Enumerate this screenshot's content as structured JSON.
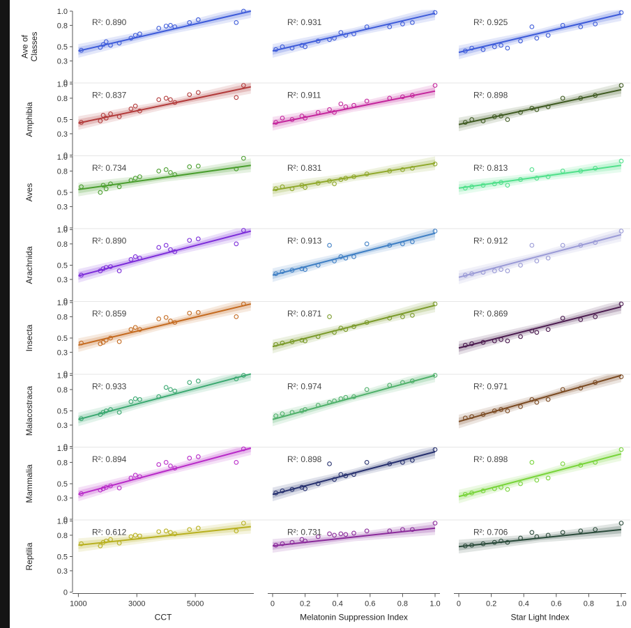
{
  "figure": {
    "columns": [
      "CCT",
      "Melatonin Suppression Index",
      "Star Light Index"
    ],
    "rows": [
      "Ave of Classes",
      "Amphibia",
      "Aves",
      "Arachnida",
      "Insecta",
      "Malacostraca",
      "Mammalia",
      "Reptilia"
    ]
  },
  "chart_data": {
    "type": "scatter",
    "layout": "small-multiples grid (8 rows x 3 columns) with linear fit lines and confidence bands",
    "y_tick_labels": [
      "0",
      "0.3",
      "0.5",
      "0.8",
      "1.0"
    ],
    "ylim": [
      0,
      1
    ],
    "columns": [
      {
        "xlabel": "CCT",
        "xlim": [
          800,
          7000
        ],
        "xticks": [
          1000,
          3000,
          5000
        ],
        "xtick_labels": [
          "1000",
          "3000",
          "5000"
        ]
      },
      {
        "xlabel": "Melatonin Suppression Index",
        "xlim": [
          -0.03,
          1.03
        ],
        "xticks": [
          0,
          0.2,
          0.4,
          0.6,
          0.8,
          1.0
        ],
        "xtick_labels": [
          "0",
          "0.2",
          "0.4",
          "0.6",
          "0.8",
          "1.0"
        ]
      },
      {
        "xlabel": "Star Light Index",
        "xlim": [
          -0.03,
          1.03
        ],
        "xticks": [
          0,
          0.2,
          0.4,
          0.6,
          0.8,
          1.0
        ],
        "xtick_labels": [
          "0",
          "0.2",
          "0.4",
          "0.6",
          "0.8",
          "1.0"
        ]
      }
    ],
    "panel_series": [
      {
        "name": "Ave of Classes",
        "color": "#3d5bd9",
        "panels": [
          {
            "r2": "R²: 0.890",
            "fit": {
              "y0": 0.44,
              "y1": 1.0
            }
          },
          {
            "r2": "R²: 0.931",
            "fit": {
              "y0": 0.44,
              "y1": 0.97
            }
          },
          {
            "r2": "R²: 0.925",
            "fit": {
              "y0": 0.42,
              "y1": 0.96
            }
          }
        ]
      },
      {
        "name": "Amphibia",
        "color": "#b23a3a",
        "colors": [
          "#b23a3a",
          "#c4259c",
          "#3f5a22"
        ],
        "panels": [
          {
            "r2": "R²: 0.837",
            "fit": {
              "y0": 0.45,
              "y1": 0.96
            }
          },
          {
            "r2": "R²: 0.911",
            "fit": {
              "y0": 0.44,
              "y1": 0.9
            }
          },
          {
            "r2": "R²: 0.898",
            "fit": {
              "y0": 0.43,
              "y1": 0.92
            }
          }
        ]
      },
      {
        "name": "Aves",
        "color": "#4a9e2e",
        "colors": [
          "#4a9e2e",
          "#8fa82a",
          "#4fe08a"
        ],
        "panels": [
          {
            "r2": "R²: 0.734",
            "fit": {
              "y0": 0.54,
              "y1": 0.88
            }
          },
          {
            "r2": "R²: 0.831",
            "fit": {
              "y0": 0.53,
              "y1": 0.91
            }
          },
          {
            "r2": "R²: 0.813",
            "fit": {
              "y0": 0.56,
              "y1": 0.88
            }
          }
        ]
      },
      {
        "name": "Arachnida",
        "color": "#7b2bd9",
        "colors": [
          "#7b2bd9",
          "#3f7fc4",
          "#9a9ad6"
        ],
        "panels": [
          {
            "r2": "R²: 0.890",
            "fit": {
              "y0": 0.35,
              "y1": 0.98
            }
          },
          {
            "r2": "R²: 0.913",
            "fit": {
              "y0": 0.36,
              "y1": 0.95
            }
          },
          {
            "r2": "R²: 0.912",
            "fit": {
              "y0": 0.33,
              "y1": 0.93
            }
          }
        ]
      },
      {
        "name": "Insecta",
        "color": "#c46a1f",
        "colors": [
          "#c46a1f",
          "#7a9a2a",
          "#4a1a4e"
        ],
        "panels": [
          {
            "r2": "R²: 0.859",
            "fit": {
              "y0": 0.4,
              "y1": 0.98
            }
          },
          {
            "r2": "R²: 0.871",
            "fit": {
              "y0": 0.38,
              "y1": 0.96
            }
          },
          {
            "r2": "R²: 0.869",
            "fit": {
              "y0": 0.36,
              "y1": 0.94
            }
          }
        ]
      },
      {
        "name": "Malacostraca",
        "color": "#3aa870",
        "colors": [
          "#3aa870",
          "#4fb06a",
          "#7a4a22"
        ],
        "panels": [
          {
            "r2": "R²: 0.933",
            "fit": {
              "y0": 0.38,
              "y1": 1.02
            }
          },
          {
            "r2": "R²: 0.974",
            "fit": {
              "y0": 0.38,
              "y1": 1.0
            }
          },
          {
            "r2": "R²: 0.971",
            "fit": {
              "y0": 0.35,
              "y1": 1.0
            }
          }
        ]
      },
      {
        "name": "Mammalia",
        "color": "#b82ac8",
        "colors": [
          "#b82ac8",
          "#26306e",
          "#78d43a"
        ],
        "panels": [
          {
            "r2": "R²: 0.894",
            "fit": {
              "y0": 0.35,
              "y1": 1.0
            }
          },
          {
            "r2": "R²: 0.898",
            "fit": {
              "y0": 0.35,
              "y1": 0.95
            }
          },
          {
            "r2": "R²: 0.898",
            "fit": {
              "y0": 0.32,
              "y1": 0.92
            }
          }
        ]
      },
      {
        "name": "Reptilia",
        "color": "#b8b01f",
        "colors": [
          "#b8b01f",
          "#8a2a9a",
          "#2a4a3a"
        ],
        "panels": [
          {
            "r2": "R²: 0.612",
            "fit": {
              "y0": 0.66,
              "y1": 0.92
            }
          },
          {
            "r2": "R²: 0.731",
            "fit": {
              "y0": 0.65,
              "y1": 0.9
            }
          },
          {
            "r2": "R²: 0.706",
            "fit": {
              "y0": 0.64,
              "y1": 0.88
            }
          }
        ]
      }
    ],
    "points": {
      "CCT": [
        {
          "x": 1100,
          "row_y": [
            0.45,
            0.46,
            0.58,
            0.36,
            0.43,
            0.39,
            0.36,
            0.68
          ]
        },
        {
          "x": 1750,
          "row_y": [
            0.49,
            0.48,
            0.5,
            0.42,
            0.42,
            0.45,
            0.41,
            0.65
          ]
        },
        {
          "x": 1850,
          "row_y": [
            0.53,
            0.56,
            0.6,
            0.45,
            0.44,
            0.48,
            0.43,
            0.7
          ]
        },
        {
          "x": 1950,
          "row_y": [
            0.57,
            0.52,
            0.55,
            0.47,
            0.47,
            0.5,
            0.45,
            0.72
          ]
        },
        {
          "x": 2100,
          "row_y": [
            0.52,
            0.58,
            0.62,
            0.48,
            0.5,
            0.52,
            0.47,
            0.74
          ]
        },
        {
          "x": 2400,
          "row_y": [
            0.55,
            0.54,
            0.58,
            0.42,
            0.45,
            0.48,
            0.44,
            0.69
          ]
        },
        {
          "x": 2800,
          "row_y": [
            0.62,
            0.65,
            0.67,
            0.58,
            0.62,
            0.63,
            0.58,
            0.78
          ]
        },
        {
          "x": 2950,
          "row_y": [
            0.66,
            0.69,
            0.7,
            0.62,
            0.65,
            0.67,
            0.62,
            0.8
          ]
        },
        {
          "x": 3100,
          "row_y": [
            0.68,
            0.62,
            0.72,
            0.6,
            0.62,
            0.66,
            0.6,
            0.79
          ]
        },
        {
          "x": 3750,
          "row_y": [
            0.76,
            0.78,
            0.8,
            0.75,
            0.77,
            0.7,
            0.77,
            0.85
          ]
        },
        {
          "x": 4000,
          "row_y": [
            0.79,
            0.8,
            0.82,
            0.78,
            0.79,
            0.83,
            0.8,
            0.86
          ]
        },
        {
          "x": 4150,
          "row_y": [
            0.8,
            0.78,
            0.78,
            0.72,
            0.74,
            0.8,
            0.75,
            0.84
          ]
        },
        {
          "x": 4300,
          "row_y": [
            0.78,
            0.74,
            0.75,
            0.69,
            0.72,
            0.78,
            0.72,
            0.82
          ]
        },
        {
          "x": 4800,
          "row_y": [
            0.84,
            0.85,
            0.86,
            0.85,
            0.85,
            0.9,
            0.86,
            0.88
          ]
        },
        {
          "x": 5100,
          "row_y": [
            0.88,
            0.88,
            0.87,
            0.87,
            0.86,
            0.92,
            0.88,
            0.9
          ]
        },
        {
          "x": 6400,
          "row_y": [
            0.84,
            0.81,
            0.83,
            0.8,
            0.8,
            0.95,
            0.8,
            0.86
          ]
        },
        {
          "x": 6650,
          "row_y": [
            1.0,
            0.98,
            0.98,
            0.99,
            0.98,
            1.0,
            0.99,
            0.97
          ]
        }
      ],
      "Melatonin Suppression Index": [
        {
          "x": 0.02,
          "row_y": [
            0.46,
            0.46,
            0.55,
            0.38,
            0.41,
            0.43,
            0.37,
            0.66
          ]
        },
        {
          "x": 0.06,
          "row_y": [
            0.5,
            0.52,
            0.58,
            0.41,
            0.43,
            0.46,
            0.4,
            0.68
          ]
        },
        {
          "x": 0.12,
          "row_y": [
            0.48,
            0.5,
            0.55,
            0.43,
            0.45,
            0.48,
            0.42,
            0.7
          ]
        },
        {
          "x": 0.18,
          "row_y": [
            0.52,
            0.55,
            0.6,
            0.45,
            0.47,
            0.5,
            0.45,
            0.74
          ]
        },
        {
          "x": 0.2,
          "row_y": [
            0.5,
            0.52,
            0.57,
            0.44,
            0.46,
            0.52,
            0.43,
            0.72
          ]
        },
        {
          "x": 0.28,
          "row_y": [
            0.58,
            0.6,
            0.63,
            0.5,
            0.52,
            0.58,
            0.5,
            0.78
          ]
        },
        {
          "x": 0.35,
          "row_y": [
            0.6,
            0.64,
            0.66,
            0.78,
            0.8,
            0.62,
            0.78,
            0.82
          ]
        },
        {
          "x": 0.38,
          "row_y": [
            0.62,
            0.6,
            0.62,
            0.56,
            0.58,
            0.64,
            0.56,
            0.8
          ]
        },
        {
          "x": 0.42,
          "row_y": [
            0.7,
            0.72,
            0.68,
            0.62,
            0.64,
            0.67,
            0.63,
            0.82
          ]
        },
        {
          "x": 0.45,
          "row_y": [
            0.66,
            0.68,
            0.7,
            0.6,
            0.62,
            0.69,
            0.61,
            0.81
          ]
        },
        {
          "x": 0.5,
          "row_y": [
            0.68,
            0.7,
            0.72,
            0.62,
            0.66,
            0.7,
            0.63,
            0.83
          ]
        },
        {
          "x": 0.58,
          "row_y": [
            0.78,
            0.76,
            0.76,
            0.8,
            0.72,
            0.8,
            0.8,
            0.86
          ]
        },
        {
          "x": 0.72,
          "row_y": [
            0.78,
            0.8,
            0.8,
            0.78,
            0.78,
            0.86,
            0.78,
            0.86
          ]
        },
        {
          "x": 0.8,
          "row_y": [
            0.82,
            0.82,
            0.82,
            0.8,
            0.8,
            0.9,
            0.8,
            0.88
          ]
        },
        {
          "x": 0.86,
          "row_y": [
            0.84,
            0.84,
            0.84,
            0.83,
            0.82,
            0.92,
            0.83,
            0.88
          ]
        },
        {
          "x": 1.0,
          "row_y": [
            0.98,
            0.98,
            0.9,
            0.98,
            0.98,
            1.0,
            0.98,
            0.97
          ]
        }
      ],
      "Star Light Index": [
        {
          "x": 0.04,
          "row_y": [
            0.44,
            0.46,
            0.56,
            0.36,
            0.4,
            0.4,
            0.35,
            0.65
          ]
        },
        {
          "x": 0.08,
          "row_y": [
            0.48,
            0.5,
            0.58,
            0.38,
            0.42,
            0.42,
            0.37,
            0.66
          ]
        },
        {
          "x": 0.15,
          "row_y": [
            0.46,
            0.48,
            0.6,
            0.4,
            0.44,
            0.45,
            0.4,
            0.68
          ]
        },
        {
          "x": 0.22,
          "row_y": [
            0.5,
            0.54,
            0.62,
            0.42,
            0.46,
            0.5,
            0.43,
            0.7
          ]
        },
        {
          "x": 0.26,
          "row_y": [
            0.52,
            0.55,
            0.64,
            0.44,
            0.48,
            0.52,
            0.45,
            0.72
          ]
        },
        {
          "x": 0.3,
          "row_y": [
            0.48,
            0.5,
            0.6,
            0.42,
            0.46,
            0.5,
            0.42,
            0.7
          ]
        },
        {
          "x": 0.38,
          "row_y": [
            0.58,
            0.6,
            0.68,
            0.5,
            0.52,
            0.56,
            0.5,
            0.76
          ]
        },
        {
          "x": 0.45,
          "row_y": [
            0.78,
            0.66,
            0.82,
            0.78,
            0.6,
            0.66,
            0.8,
            0.84
          ]
        },
        {
          "x": 0.48,
          "row_y": [
            0.62,
            0.64,
            0.7,
            0.56,
            0.58,
            0.62,
            0.55,
            0.78
          ]
        },
        {
          "x": 0.55,
          "row_y": [
            0.66,
            0.68,
            0.72,
            0.6,
            0.62,
            0.66,
            0.58,
            0.8
          ]
        },
        {
          "x": 0.64,
          "row_y": [
            0.8,
            0.8,
            0.8,
            0.78,
            0.78,
            0.8,
            0.78,
            0.84
          ]
        },
        {
          "x": 0.75,
          "row_y": [
            0.78,
            0.8,
            0.8,
            0.78,
            0.76,
            0.82,
            0.76,
            0.86
          ]
        },
        {
          "x": 0.84,
          "row_y": [
            0.82,
            0.84,
            0.84,
            0.82,
            0.8,
            0.9,
            0.8,
            0.88
          ]
        },
        {
          "x": 1.0,
          "row_y": [
            0.98,
            0.98,
            0.94,
            0.98,
            0.98,
            0.98,
            0.98,
            0.97
          ]
        }
      ]
    }
  }
}
